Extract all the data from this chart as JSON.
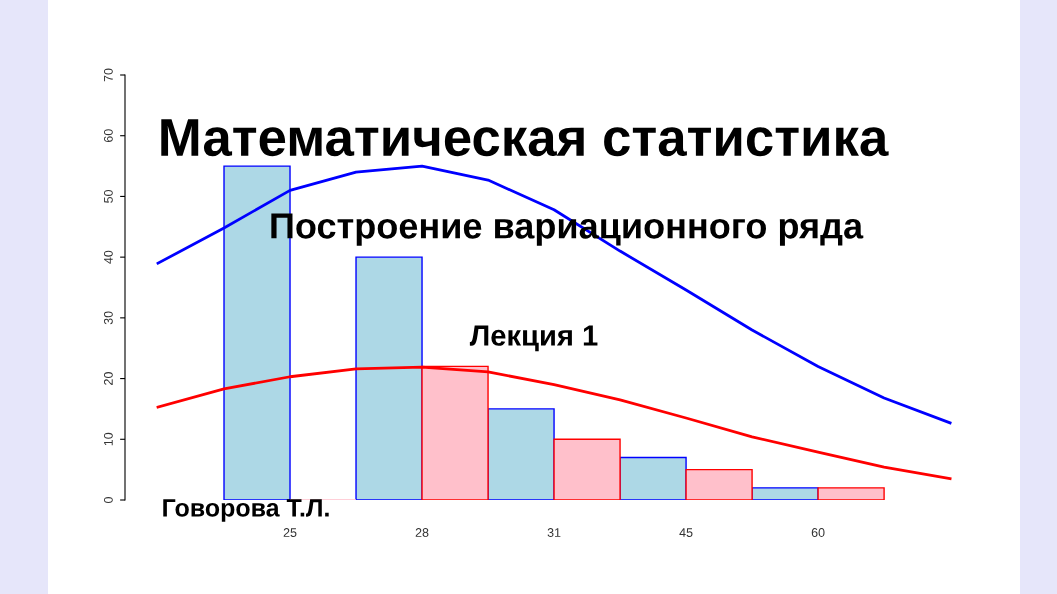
{
  "chart_data": {
    "type": "bar",
    "title": "Математическая статистика",
    "subtitle": "Построение вариационного ряда",
    "annotations": [
      "Лекция 1",
      "Говорова Т.Л."
    ],
    "categories": [
      null,
      null,
      "25",
      null,
      "28",
      null,
      "31",
      null,
      "45",
      null,
      "60",
      null,
      null
    ],
    "series": [
      {
        "color": "#add8e6",
        "values": [
          null,
          null,
          55,
          null,
          40,
          null,
          15,
          null,
          7,
          null,
          2,
          null,
          null
        ]
      },
      {
        "color": "#ffc0cb",
        "values": [
          null,
          null,
          0,
          null,
          22,
          null,
          10,
          null,
          5,
          null,
          2,
          null,
          null
        ]
      },
      {
        "type": "line",
        "color": "#0000ff",
        "values": [
          39,
          44.8,
          51,
          54,
          55,
          52.7,
          47.8,
          41,
          34.6,
          28,
          22,
          16.8,
          12.7
        ]
      },
      {
        "type": "line",
        "color": "#ff0000",
        "values": [
          15.3,
          18.3,
          20.3,
          21.6,
          21.9,
          21.1,
          19,
          16.5,
          13.5,
          10.4,
          7.9,
          5.4,
          3.5
        ]
      }
    ],
    "ylim": [
      0,
      70
    ],
    "yticks": [
      0,
      10,
      20,
      30,
      40,
      50,
      60,
      70
    ],
    "grid": false
  }
}
